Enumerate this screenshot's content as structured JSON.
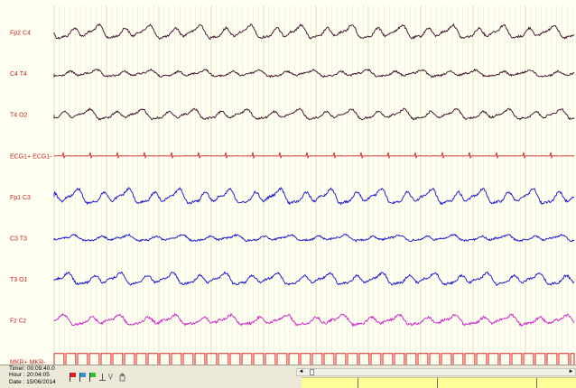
{
  "channels": [
    {
      "label": "Fp2 C4",
      "color": "#3a0a2a",
      "amp": 8,
      "period": 28,
      "noise": 1.2,
      "type": "eeg"
    },
    {
      "label": "C4 T4",
      "color": "#3a0a2a",
      "amp": 4,
      "period": 30,
      "noise": 1.0,
      "type": "eeg"
    },
    {
      "label": "T4 O2",
      "color": "#3a0a2a",
      "amp": 6,
      "period": 29,
      "noise": 1.0,
      "type": "eeg"
    },
    {
      "label": "ECG1+ ECG1-",
      "color": "#cc2222",
      "amp": 1.5,
      "period": 30,
      "noise": 0.3,
      "type": "ecg"
    },
    {
      "label": "Fp1 C3",
      "color": "#1010cc",
      "amp": 9,
      "period": 28,
      "noise": 1.3,
      "type": "eeg"
    },
    {
      "label": "C3 T3",
      "color": "#1010cc",
      "amp": 3.5,
      "period": 30,
      "noise": 1.0,
      "type": "eeg"
    },
    {
      "label": "T3 O1",
      "color": "#1010cc",
      "amp": 7,
      "period": 29,
      "noise": 1.2,
      "type": "eeg"
    },
    {
      "label": "Fz Cz",
      "color": "#cc22cc",
      "amp": 6,
      "period": 31,
      "noise": 1.4,
      "type": "eeg"
    },
    {
      "label": "MKR+ MKR-",
      "color": "#dd2222",
      "amp": 9,
      "period": 26,
      "noise": 0,
      "type": "square"
    }
  ],
  "status": {
    "timer": "Timer: 00:09:40.0",
    "hour": "Hour : 20:04:05",
    "date": "Date : 15/06/2014"
  },
  "toolbar": {
    "icons": [
      "red-flag-icon",
      "blue-flag-icon",
      "green-flag-icon",
      "baseline-icon",
      "annotation-icon",
      "hand-icon"
    ]
  },
  "scrollbar": {
    "left_arrow": "◄",
    "right_arrow": "►"
  }
}
